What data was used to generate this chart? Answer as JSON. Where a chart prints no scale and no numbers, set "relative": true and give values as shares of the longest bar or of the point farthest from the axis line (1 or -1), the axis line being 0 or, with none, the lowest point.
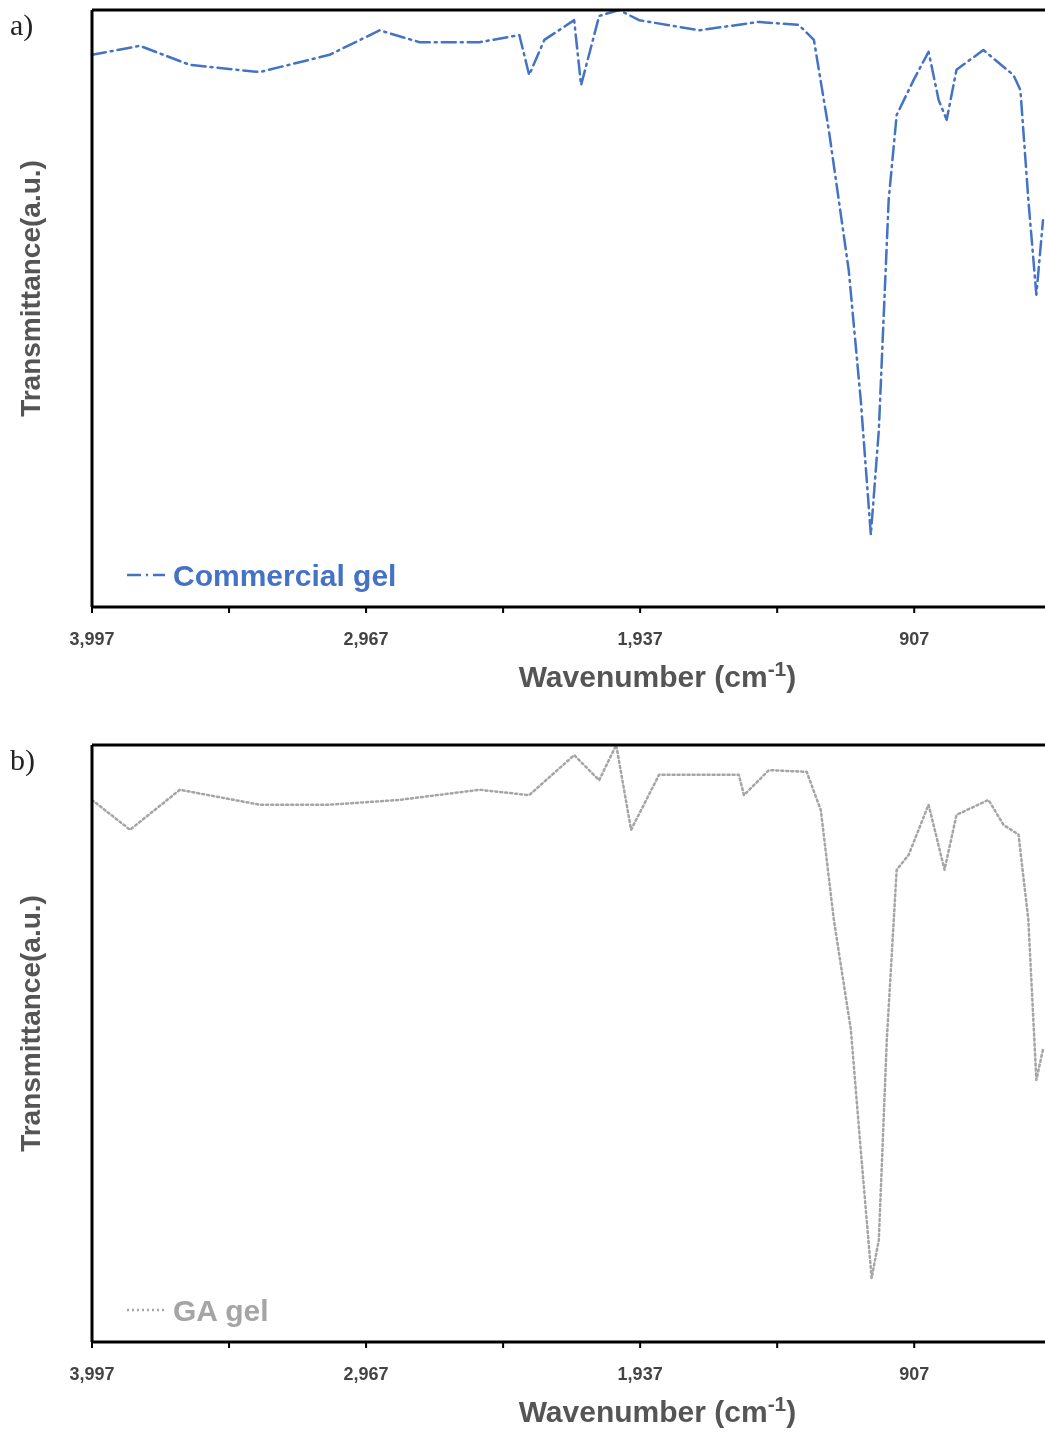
{
  "chart_data": [
    {
      "type": "line",
      "title": "a)",
      "xlabel": "Wavenumber (cm$^{-1}$)",
      "ylabel": "Transmittance(a.u.)",
      "relative": true,
      "xlim": [
        3997,
        423
      ],
      "xticks": [
        {
          "value": 3997,
          "label": "3,997"
        },
        {
          "value": 3482,
          "label": null
        },
        {
          "value": 2967,
          "label": "2,967"
        },
        {
          "value": 2452,
          "label": null
        },
        {
          "value": 1937,
          "label": "1,937"
        },
        {
          "value": 1422,
          "label": null
        },
        907
      ],
      "legend": "bottom left",
      "grid": false,
      "series": [
        {
          "name": "Commercial gel",
          "color": "#4472c4",
          "line_style": "dashed",
          "x": [
            3997,
            3817,
            3629,
            3367,
            3104,
            2916,
            2766,
            2541,
            2391,
            2354,
            2297,
            2185,
            2159,
            2091,
            2016,
            1941,
            1716,
            1491,
            1341,
            1284,
            1228,
            1153,
            1108,
            1070,
            1040,
            1003,
            973,
            909,
            853,
            815,
            785,
            748,
            647,
            534,
            508,
            478,
            448,
            423
          ],
          "values": [
            0.925,
            0.94,
            0.908,
            0.896,
            0.925,
            0.966,
            0.946,
            0.946,
            0.958,
            0.891,
            0.95,
            0.983,
            0.874,
            0.99,
            1,
            0.983,
            0.966,
            0.98,
            0.975,
            0.95,
            0.799,
            0.564,
            0.347,
            0.121,
            0.296,
            0.682,
            0.824,
            0.883,
            0.93,
            0.849,
            0.816,
            0.9,
            0.933,
            0.891,
            0.866,
            0.682,
            0.523,
            0.648
          ]
        }
      ]
    },
    {
      "type": "line",
      "title": "b)",
      "xlabel": "Wavenumber (cm$^{-1}$)",
      "ylabel": "Transmittance(a.u.)",
      "relative": true,
      "xlim": [
        3997,
        423
      ],
      "xticks": [
        {
          "value": 3997,
          "label": "3,997"
        },
        {
          "value": 3482,
          "label": null
        },
        {
          "value": 2967,
          "label": "2,967"
        },
        {
          "value": 2452,
          "label": null
        },
        {
          "value": 1937,
          "label": "1,937"
        },
        {
          "value": 1422,
          "label": null
        },
        907
      ],
      "legend": "bottom left",
      "grid": false,
      "series": [
        {
          "name": "GA gel",
          "color": "#a5a5a5",
          "line_style": "dotted",
          "x": [
            3997,
            3854,
            3667,
            3367,
            3104,
            2841,
            2541,
            2354,
            2185,
            2091,
            2027,
            1971,
            1866,
            1566,
            1547,
            1453,
            1311,
            1258,
            1209,
            1145,
            1108,
            1067,
            1040,
            1010,
            973,
            928,
            853,
            793,
            748,
            628,
            571,
            515,
            478,
            448,
            423
          ],
          "values": [
            0.908,
            0.858,
            0.925,
            0.9,
            0.9,
            0.908,
            0.925,
            0.916,
            0.983,
            0.941,
            1,
            0.858,
            0.95,
            0.95,
            0.916,
            0.958,
            0.955,
            0.891,
            0.707,
            0.523,
            0.322,
            0.107,
            0.171,
            0.506,
            0.791,
            0.816,
            0.9,
            0.791,
            0.883,
            0.908,
            0.866,
            0.85,
            0.707,
            0.439,
            0.49
          ]
        }
      ]
    }
  ]
}
